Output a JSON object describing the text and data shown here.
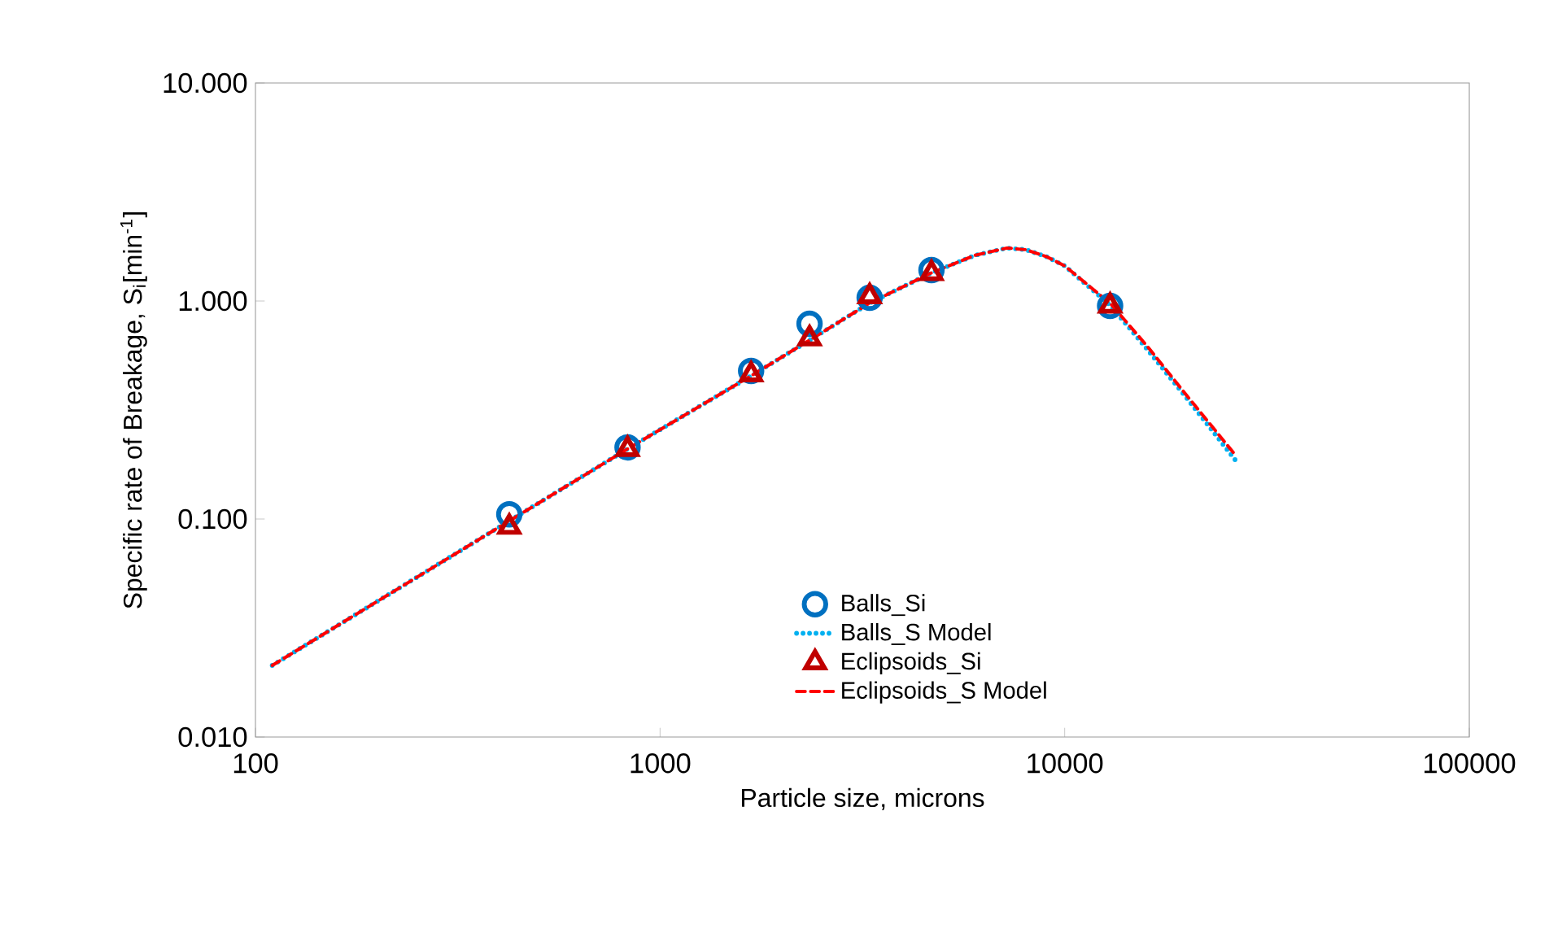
{
  "chart_data": {
    "type": "line",
    "xlabel": "Particle size, microns",
    "ylabel": "Specific rate of Breakage, S$_{i}$[min$^{-1}$]",
    "log": "xy",
    "xlim": [
      100,
      100000
    ],
    "ylim": [
      0.01,
      10
    ],
    "xticks": [
      100,
      1000,
      10000,
      100000
    ],
    "yticks": [
      {
        "value": 0.01,
        "label": "0.010"
      },
      {
        "value": 0.1,
        "label": "0.100"
      },
      {
        "value": 1,
        "label": "1.000"
      },
      {
        "value": 10,
        "label": "10.000"
      }
    ],
    "grid": false,
    "legend": "bottom",
    "series": [
      {
        "name": "Balls_Si",
        "type": "scatter",
        "marker": "circle",
        "color": "#0070c0",
        "x": [
          424,
          831,
          1679,
          2341,
          3296,
          4686,
          12950
        ],
        "values": [
          0.105,
          0.213,
          0.478,
          0.786,
          1.035,
          1.386,
          0.95
        ]
      },
      {
        "name": "Balls_S Model",
        "line_style": "dotted",
        "color": "#00b0f0",
        "x": [
          110,
          424,
          850,
          1700,
          2400,
          3300,
          4700,
          6000,
          7200,
          8000,
          9000,
          10000,
          13000,
          16000,
          20000,
          26500
        ],
        "values": [
          0.0213,
          0.098,
          0.215,
          0.46,
          0.68,
          0.98,
          1.35,
          1.62,
          1.75,
          1.72,
          1.6,
          1.45,
          0.95,
          0.6,
          0.36,
          0.185
        ]
      },
      {
        "name": "Eclipsoids_Si",
        "type": "scatter",
        "marker": "triangle",
        "color": "#c00000",
        "x": [
          424,
          831,
          1679,
          2341,
          3296,
          4686,
          12950
        ],
        "values": [
          0.092,
          0.209,
          0.46,
          0.673,
          1.05,
          1.34,
          0.95
        ]
      },
      {
        "name": "Eclipsoids_S Model",
        "line_style": "dashed",
        "color": "#ff0000",
        "x": [
          110,
          424,
          850,
          1700,
          2400,
          3300,
          4700,
          6000,
          7200,
          8000,
          9000,
          10000,
          13000,
          16000,
          20000,
          26500
        ],
        "values": [
          0.0213,
          0.098,
          0.215,
          0.46,
          0.68,
          0.98,
          1.35,
          1.62,
          1.75,
          1.72,
          1.6,
          1.45,
          0.97,
          0.62,
          0.37,
          0.195
        ]
      }
    ]
  }
}
